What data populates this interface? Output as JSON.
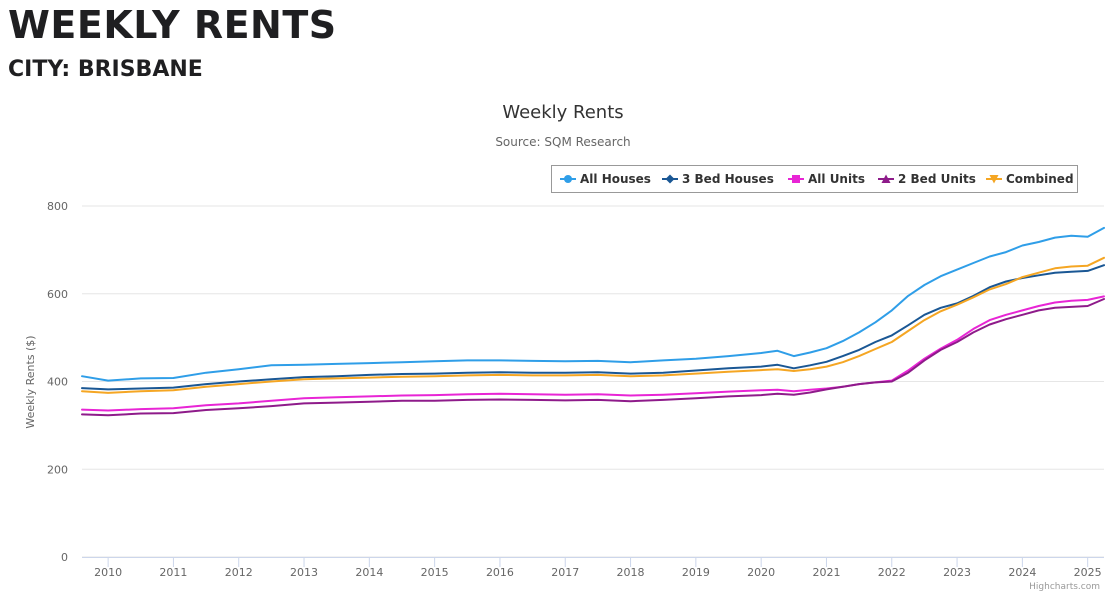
{
  "page": {
    "title": "WEEKLY RENTS",
    "subtitle": "CITY: BRISBANE"
  },
  "chart_data": {
    "type": "line",
    "title": "Weekly Rents",
    "subtitle": "Source: SQM Research",
    "xlabel": "",
    "ylabel": "Weekly Rents ($)",
    "ylim": [
      0,
      800
    ],
    "xlim": [
      2009.6,
      2025.25
    ],
    "yticks": [
      0,
      200,
      400,
      600,
      800
    ],
    "xticks": [
      "2010",
      "2011",
      "2012",
      "2013",
      "2014",
      "2015",
      "2016",
      "2017",
      "2018",
      "2019",
      "2020",
      "2021",
      "2022",
      "2023",
      "2024",
      "2025"
    ],
    "grid": "horizontal",
    "legend_position": "top-right",
    "credits": "Highcharts.com",
    "series": [
      {
        "name": "All Houses",
        "color": "#2f9ee8",
        "marker": "circle",
        "x": [
          2009.6,
          2010.0,
          2010.5,
          2011.0,
          2011.5,
          2012.0,
          2012.5,
          2013.0,
          2013.5,
          2014.0,
          2014.5,
          2015.0,
          2015.5,
          2016.0,
          2016.5,
          2017.0,
          2017.5,
          2018.0,
          2018.5,
          2019.0,
          2019.5,
          2020.0,
          2020.25,
          2020.5,
          2020.75,
          2021.0,
          2021.25,
          2021.5,
          2021.75,
          2022.0,
          2022.25,
          2022.5,
          2022.75,
          2023.0,
          2023.25,
          2023.5,
          2023.75,
          2024.0,
          2024.25,
          2024.5,
          2024.75,
          2025.0,
          2025.25
        ],
        "values": [
          412,
          402,
          407,
          408,
          420,
          428,
          437,
          438,
          440,
          442,
          444,
          446,
          448,
          448,
          447,
          446,
          447,
          444,
          448,
          452,
          458,
          465,
          470,
          458,
          466,
          476,
          492,
          512,
          535,
          562,
          595,
          620,
          640,
          655,
          670,
          685,
          695,
          710,
          718,
          728,
          732,
          730,
          750
        ]
      },
      {
        "name": "3 Bed Houses",
        "color": "#1a5794",
        "marker": "diamond",
        "x": [
          2009.6,
          2010.0,
          2010.5,
          2011.0,
          2011.5,
          2012.0,
          2012.5,
          2013.0,
          2013.5,
          2014.0,
          2014.5,
          2015.0,
          2015.5,
          2016.0,
          2016.5,
          2017.0,
          2017.5,
          2018.0,
          2018.5,
          2019.0,
          2019.5,
          2020.0,
          2020.25,
          2020.5,
          2020.75,
          2021.0,
          2021.25,
          2021.5,
          2021.75,
          2022.0,
          2022.25,
          2022.5,
          2022.75,
          2023.0,
          2023.25,
          2023.5,
          2023.75,
          2024.0,
          2024.25,
          2024.5,
          2024.75,
          2025.0,
          2025.25
        ],
        "values": [
          385,
          382,
          384,
          386,
          394,
          400,
          405,
          410,
          412,
          415,
          417,
          418,
          420,
          421,
          420,
          420,
          421,
          418,
          420,
          425,
          430,
          434,
          438,
          430,
          437,
          445,
          458,
          472,
          490,
          505,
          528,
          552,
          568,
          578,
          595,
          615,
          628,
          636,
          642,
          648,
          650,
          652,
          665
        ]
      },
      {
        "name": "All Units",
        "color": "#e825d5",
        "marker": "square",
        "x": [
          2009.6,
          2010.0,
          2010.5,
          2011.0,
          2011.5,
          2012.0,
          2012.5,
          2013.0,
          2013.5,
          2014.0,
          2014.5,
          2015.0,
          2015.5,
          2016.0,
          2016.5,
          2017.0,
          2017.5,
          2018.0,
          2018.5,
          2019.0,
          2019.5,
          2020.0,
          2020.25,
          2020.5,
          2020.75,
          2021.0,
          2021.25,
          2021.5,
          2021.75,
          2022.0,
          2022.25,
          2022.5,
          2022.75,
          2023.0,
          2023.25,
          2023.5,
          2023.75,
          2024.0,
          2024.25,
          2024.5,
          2024.75,
          2025.0,
          2025.25
        ],
        "values": [
          336,
          334,
          337,
          339,
          346,
          350,
          356,
          362,
          364,
          366,
          368,
          369,
          371,
          372,
          371,
          370,
          371,
          368,
          370,
          373,
          377,
          380,
          381,
          378,
          381,
          384,
          388,
          394,
          398,
          402,
          425,
          452,
          475,
          495,
          520,
          540,
          552,
          562,
          572,
          580,
          584,
          586,
          594
        ]
      },
      {
        "name": "2 Bed Units",
        "color": "#8e1b8a",
        "marker": "triangle",
        "x": [
          2009.6,
          2010.0,
          2010.5,
          2011.0,
          2011.5,
          2012.0,
          2012.5,
          2013.0,
          2013.5,
          2014.0,
          2014.5,
          2015.0,
          2015.5,
          2016.0,
          2016.5,
          2017.0,
          2017.5,
          2018.0,
          2018.5,
          2019.0,
          2019.5,
          2020.0,
          2020.25,
          2020.5,
          2020.75,
          2021.0,
          2021.25,
          2021.5,
          2021.75,
          2022.0,
          2022.25,
          2022.5,
          2022.75,
          2023.0,
          2023.25,
          2023.5,
          2023.75,
          2024.0,
          2024.25,
          2024.5,
          2024.75,
          2025.0,
          2025.25
        ],
        "values": [
          325,
          323,
          327,
          328,
          335,
          339,
          344,
          350,
          352,
          354,
          356,
          356,
          358,
          359,
          358,
          357,
          358,
          355,
          358,
          362,
          366,
          369,
          372,
          370,
          375,
          382,
          388,
          394,
          398,
          400,
          420,
          448,
          472,
          490,
          512,
          530,
          542,
          552,
          562,
          568,
          570,
          572,
          588
        ]
      },
      {
        "name": "Combined",
        "color": "#f5a623",
        "marker": "triangle-down",
        "x": [
          2009.6,
          2010.0,
          2010.5,
          2011.0,
          2011.5,
          2012.0,
          2012.5,
          2013.0,
          2013.5,
          2014.0,
          2014.5,
          2015.0,
          2015.5,
          2016.0,
          2016.5,
          2017.0,
          2017.5,
          2018.0,
          2018.5,
          2019.0,
          2019.5,
          2020.0,
          2020.25,
          2020.5,
          2020.75,
          2021.0,
          2021.25,
          2021.5,
          2021.75,
          2022.0,
          2022.25,
          2022.5,
          2022.75,
          2023.0,
          2023.25,
          2023.5,
          2023.75,
          2024.0,
          2024.25,
          2024.5,
          2024.75,
          2025.0,
          2025.25
        ],
        "values": [
          378,
          374,
          378,
          380,
          388,
          394,
          400,
          405,
          407,
          409,
          411,
          412,
          414,
          415,
          414,
          414,
          415,
          412,
          414,
          418,
          422,
          426,
          428,
          424,
          428,
          434,
          444,
          458,
          474,
          490,
          515,
          540,
          560,
          575,
          592,
          610,
          622,
          638,
          648,
          658,
          662,
          664,
          682
        ]
      }
    ]
  }
}
